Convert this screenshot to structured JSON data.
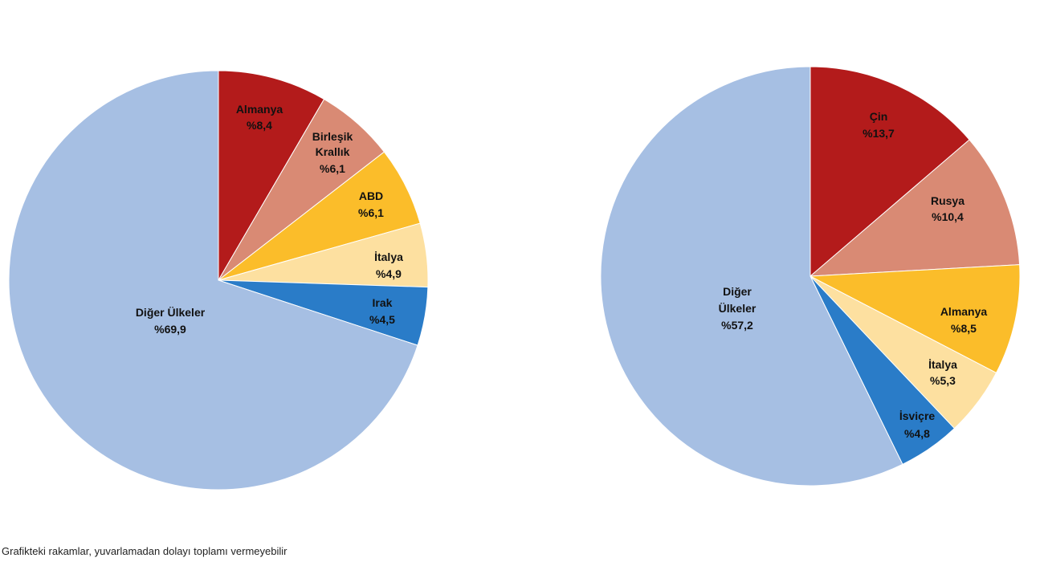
{
  "footnote": "Grafikteki rakamlar, yuvarlamadan dolayı toplamı vermeyebilir",
  "chart_data": [
    {
      "type": "pie",
      "slices": [
        {
          "label": "Almanya",
          "value": 8.4,
          "text": "%8,4",
          "color": "#b31b1b"
        },
        {
          "label": "Birleşik Krallık",
          "value": 6.1,
          "text": "%6,1",
          "color": "#d98a74"
        },
        {
          "label": "ABD",
          "value": 6.1,
          "text": "%6,1",
          "color": "#fbbd2a"
        },
        {
          "label": "İtalya",
          "value": 4.9,
          "text": "%4,9",
          "color": "#fde0a0"
        },
        {
          "label": "Irak",
          "value": 4.5,
          "text": "%4,5",
          "color": "#2a7cc8"
        },
        {
          "label": "Diğer Ülkeler",
          "value": 69.9,
          "text": "%69,9",
          "color": "#a6bfe3"
        }
      ]
    },
    {
      "type": "pie",
      "slices": [
        {
          "label": "Çin",
          "value": 13.7,
          "text": "%13,7",
          "color": "#b31b1b"
        },
        {
          "label": "Rusya",
          "value": 10.4,
          "text": "%10,4",
          "color": "#d98a74"
        },
        {
          "label": "Almanya",
          "value": 8.5,
          "text": "%8,5",
          "color": "#fbbd2a"
        },
        {
          "label": "İtalya",
          "value": 5.3,
          "text": "%5,3",
          "color": "#fde0a0"
        },
        {
          "label": "İsviçre",
          "value": 4.8,
          "text": "%4,8",
          "color": "#2a7cc8"
        },
        {
          "label": "Diğer Ülkeler",
          "value": 57.2,
          "text": "%57,2",
          "color": "#a6bfe3"
        }
      ]
    }
  ]
}
